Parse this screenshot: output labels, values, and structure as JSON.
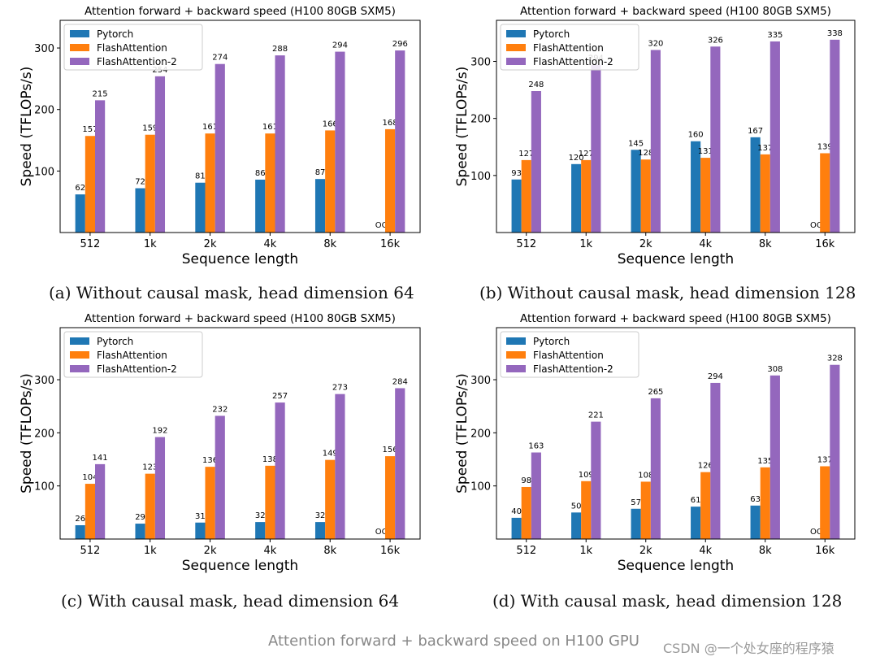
{
  "colors": {
    "pytorch": "#1f77b4",
    "flash": "#ff7f0e",
    "flash2": "#9467bd"
  },
  "figure_caption": "Attention forward + backward speed on H100 GPU",
  "watermark": "CSDN @一个处女座的程序猿",
  "chart_data": [
    {
      "type": "bar",
      "title": "Attention forward + backward speed (H100 80GB SXM5)",
      "caption": "(a) Without causal mask, head dimension 64",
      "xlabel": "Sequence length",
      "ylabel": "Speed (TFLOPs/s)",
      "ylim": [
        0,
        345
      ],
      "yticks": [
        100,
        200,
        300
      ],
      "categories": [
        "512",
        "1k",
        "2k",
        "4k",
        "8k",
        "16k"
      ],
      "series": [
        {
          "name": "Pytorch",
          "values": [
            62,
            72,
            81,
            86,
            87,
            null
          ]
        },
        {
          "name": "FlashAttention",
          "values": [
            157,
            159,
            161,
            161,
            166,
            168
          ]
        },
        {
          "name": "FlashAttention-2",
          "values": [
            215,
            254,
            274,
            288,
            294,
            296
          ]
        }
      ],
      "oom_label": "OOM",
      "legend": "top-left"
    },
    {
      "type": "bar",
      "title": "Attention forward + backward speed (H100 80GB SXM5)",
      "caption": "(b) Without causal mask, head dimension 128",
      "xlabel": "Sequence length",
      "ylabel": "Speed (TFLOPs/s)",
      "ylim": [
        0,
        372
      ],
      "yticks": [
        100,
        200,
        300
      ],
      "categories": [
        "512",
        "1k",
        "2k",
        "4k",
        "8k",
        "16k"
      ],
      "series": [
        {
          "name": "Pytorch",
          "values": [
            93,
            120,
            145,
            160,
            167,
            null
          ]
        },
        {
          "name": "FlashAttention",
          "values": [
            127,
            127,
            128,
            131,
            137,
            139
          ]
        },
        {
          "name": "FlashAttention-2",
          "values": [
            248,
            294,
            320,
            326,
            335,
            338
          ]
        }
      ],
      "oom_label": "OOM",
      "legend": "top-left"
    },
    {
      "type": "bar",
      "title": "Attention forward + backward speed (H100 80GB SXM5)",
      "caption": "(c) With causal mask, head dimension 64",
      "xlabel": "Sequence length",
      "ylabel": "Speed (TFLOPs/s)",
      "ylim": [
        0,
        398
      ],
      "yticks": [
        100,
        200,
        300
      ],
      "categories": [
        "512",
        "1k",
        "2k",
        "4k",
        "8k",
        "16k"
      ],
      "series": [
        {
          "name": "Pytorch",
          "values": [
            26,
            29,
            31,
            32,
            32,
            null
          ]
        },
        {
          "name": "FlashAttention",
          "values": [
            104,
            123,
            136,
            138,
            149,
            156
          ]
        },
        {
          "name": "FlashAttention-2",
          "values": [
            141,
            192,
            232,
            257,
            273,
            284
          ]
        }
      ],
      "oom_label": "OOM",
      "legend": "top-left"
    },
    {
      "type": "bar",
      "title": "Attention forward + backward speed (H100 80GB SXM5)",
      "caption": "(d) With causal mask, head dimension 128",
      "xlabel": "Sequence length",
      "ylabel": "Speed (TFLOPs/s)",
      "ylim": [
        0,
        398
      ],
      "yticks": [
        100,
        200,
        300
      ],
      "categories": [
        "512",
        "1k",
        "2k",
        "4k",
        "8k",
        "16k"
      ],
      "series": [
        {
          "name": "Pytorch",
          "values": [
            40,
            50,
            57,
            61,
            63,
            null
          ]
        },
        {
          "name": "FlashAttention",
          "values": [
            98,
            109,
            108,
            126,
            135,
            137
          ]
        },
        {
          "name": "FlashAttention-2",
          "values": [
            163,
            221,
            265,
            294,
            308,
            328
          ]
        }
      ],
      "oom_label": "OOM",
      "legend": "top-left"
    }
  ]
}
